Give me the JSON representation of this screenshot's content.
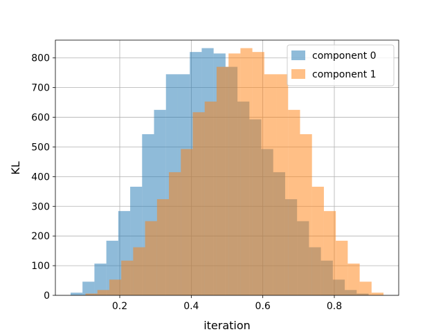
{
  "chart_data": {
    "type": "bar",
    "subtype": "histogram",
    "xlabel": "iteration",
    "ylabel": "KL",
    "xlim": [
      0.02,
      0.98
    ],
    "ylim": [
      0,
      860
    ],
    "xticks": [
      0.2,
      0.4,
      0.6,
      0.8
    ],
    "yticks": [
      0,
      100,
      200,
      300,
      400,
      500,
      600,
      700,
      800
    ],
    "grid": true,
    "legend": {
      "position": "top-right"
    },
    "series": [
      {
        "name": "component 0",
        "color": "#1f77b4",
        "opacity": 0.5,
        "bin_edges": [
          0.0625,
          0.09583,
          0.12917,
          0.1625,
          0.19583,
          0.22917,
          0.2625,
          0.29583,
          0.32917,
          0.3625,
          0.39583,
          0.42917,
          0.4625,
          0.49583,
          0.52917,
          0.5625,
          0.59583,
          0.62917,
          0.6625,
          0.69583,
          0.72917,
          0.7625,
          0.79583,
          0.82917,
          0.8625,
          0.89583
        ],
        "values": [
          9,
          46,
          107,
          184,
          284,
          366,
          543,
          625,
          745,
          745,
          820,
          833,
          815,
          770,
          653,
          593,
          493,
          415,
          324,
          250,
          162,
          117,
          53,
          18,
          6
        ]
      },
      {
        "name": "component 1",
        "color": "#ff7f0e",
        "opacity": 0.5,
        "bin_edges": [
          0.10417,
          0.1375,
          0.17083,
          0.20417,
          0.2375,
          0.27083,
          0.30417,
          0.3375,
          0.37083,
          0.40417,
          0.4375,
          0.47083,
          0.50417,
          0.5375,
          0.57083,
          0.60417,
          0.6375,
          0.67083,
          0.70417,
          0.7375,
          0.77083,
          0.80417,
          0.8375,
          0.87083,
          0.90417,
          0.9375
        ],
        "values": [
          6,
          18,
          53,
          117,
          162,
          250,
          324,
          415,
          493,
          617,
          653,
          770,
          815,
          833,
          820,
          745,
          745,
          625,
          543,
          366,
          284,
          184,
          107,
          46,
          9
        ]
      }
    ]
  }
}
